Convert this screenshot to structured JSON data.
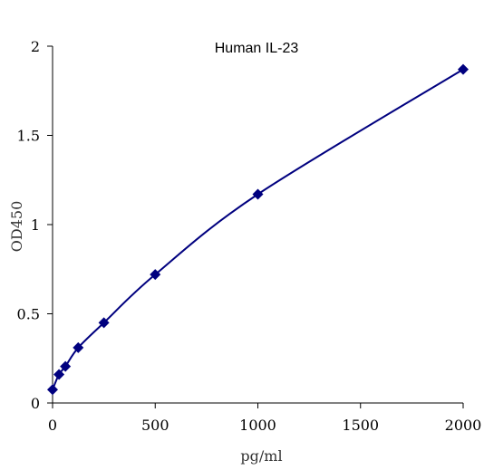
{
  "chart_data": {
    "type": "line",
    "title": "Human IL-23",
    "xlabel": "pg/ml",
    "ylabel": "OD450",
    "xlim": [
      0,
      2000
    ],
    "ylim": [
      0,
      2
    ],
    "x_ticks": [
      "0",
      "500",
      "1000",
      "1500",
      "2000"
    ],
    "y_ticks": [
      "0",
      "0.5",
      "1",
      "1.5",
      "2"
    ],
    "grid": false,
    "legend": "none",
    "series": [
      {
        "color": "#00007f",
        "marker": "diamond",
        "x": [
          0,
          31.25,
          62.5,
          125,
          250,
          500,
          1000,
          2000
        ],
        "y": [
          0.075,
          0.16,
          0.205,
          0.31,
          0.45,
          0.72,
          1.17,
          1.87
        ]
      }
    ]
  }
}
